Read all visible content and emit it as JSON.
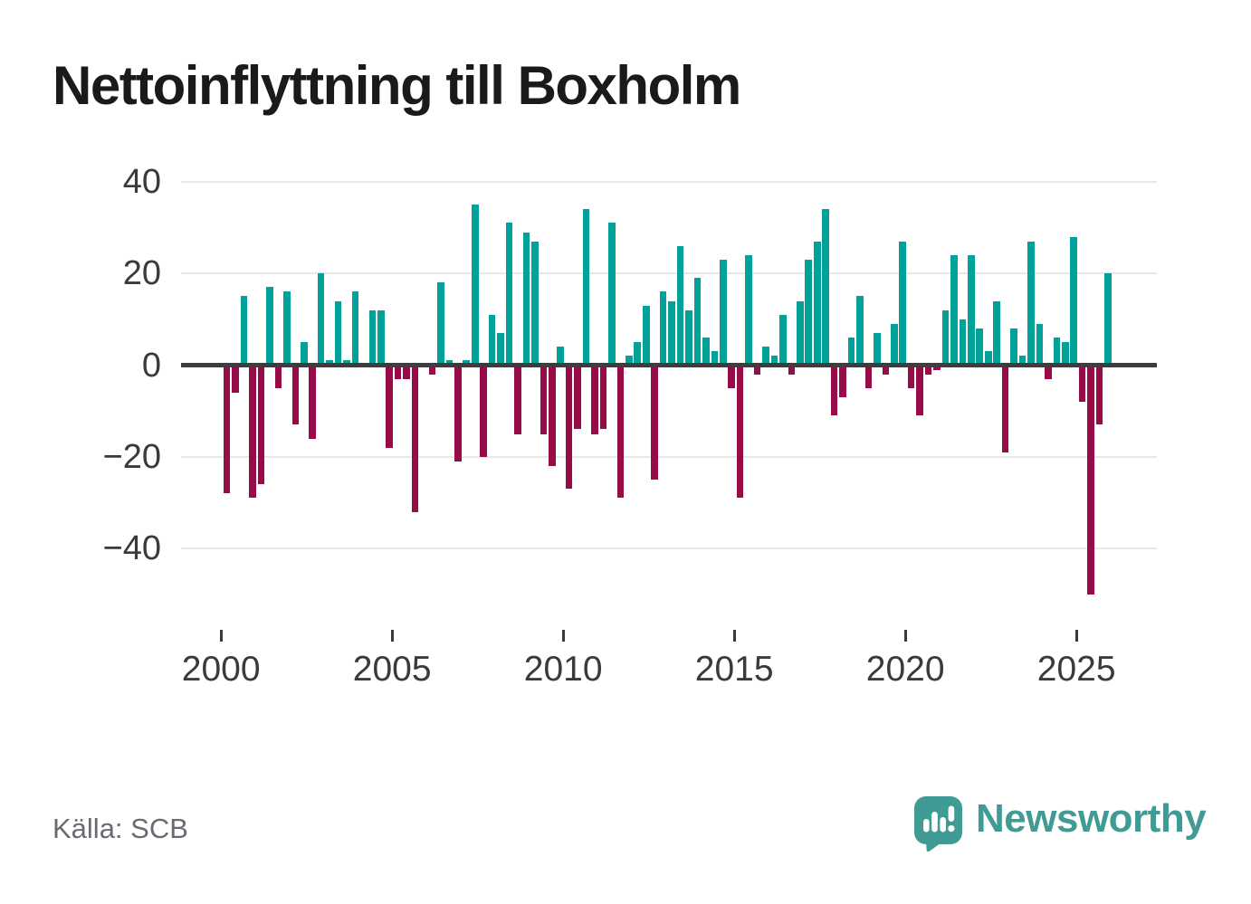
{
  "title": "Nettoinflyttning till Boxholm",
  "source": "Källa: SCB",
  "brand": {
    "name": "Newsworthy",
    "icon": "newsworthy-speech-bubble-chart-icon",
    "color": "#3f9b93"
  },
  "chart_data": {
    "type": "bar",
    "title": "Nettoinflyttning till Boxholm",
    "frequency": "quarterly",
    "x_start": "2000-Q1",
    "x_end": "2025-Q4",
    "values": [
      -28,
      -6,
      15,
      -29,
      -26,
      17,
      -5,
      16,
      -13,
      5,
      -16,
      20,
      1,
      14,
      1,
      16,
      0,
      12,
      12,
      -18,
      -3,
      -3,
      -32,
      0,
      -2,
      18,
      1,
      -21,
      1,
      35,
      -20,
      11,
      7,
      31,
      -15,
      29,
      27,
      -15,
      -22,
      4,
      -27,
      -14,
      34,
      -15,
      -14,
      31,
      -29,
      2,
      5,
      13,
      -25,
      16,
      14,
      26,
      12,
      19,
      6,
      3,
      23,
      -5,
      -29,
      24,
      -2,
      4,
      2,
      11,
      -2,
      14,
      23,
      27,
      34,
      -11,
      -7,
      6,
      15,
      -5,
      7,
      -2,
      9,
      27,
      -5,
      -11,
      -2,
      -1,
      12,
      24,
      10,
      24,
      8,
      3,
      14,
      -19,
      8,
      2,
      27,
      9,
      -3,
      6,
      5,
      28,
      -8,
      -50,
      -13,
      20
    ],
    "x_tick_labels": [
      "2000",
      "2005",
      "2010",
      "2015",
      "2020",
      "2025"
    ],
    "y_tick_values": [
      40,
      20,
      0,
      -20,
      -40
    ],
    "ylim": [
      -52,
      42
    ],
    "grid": true,
    "legend": false,
    "positive_color": "#00a29a",
    "negative_color": "#970b48"
  }
}
